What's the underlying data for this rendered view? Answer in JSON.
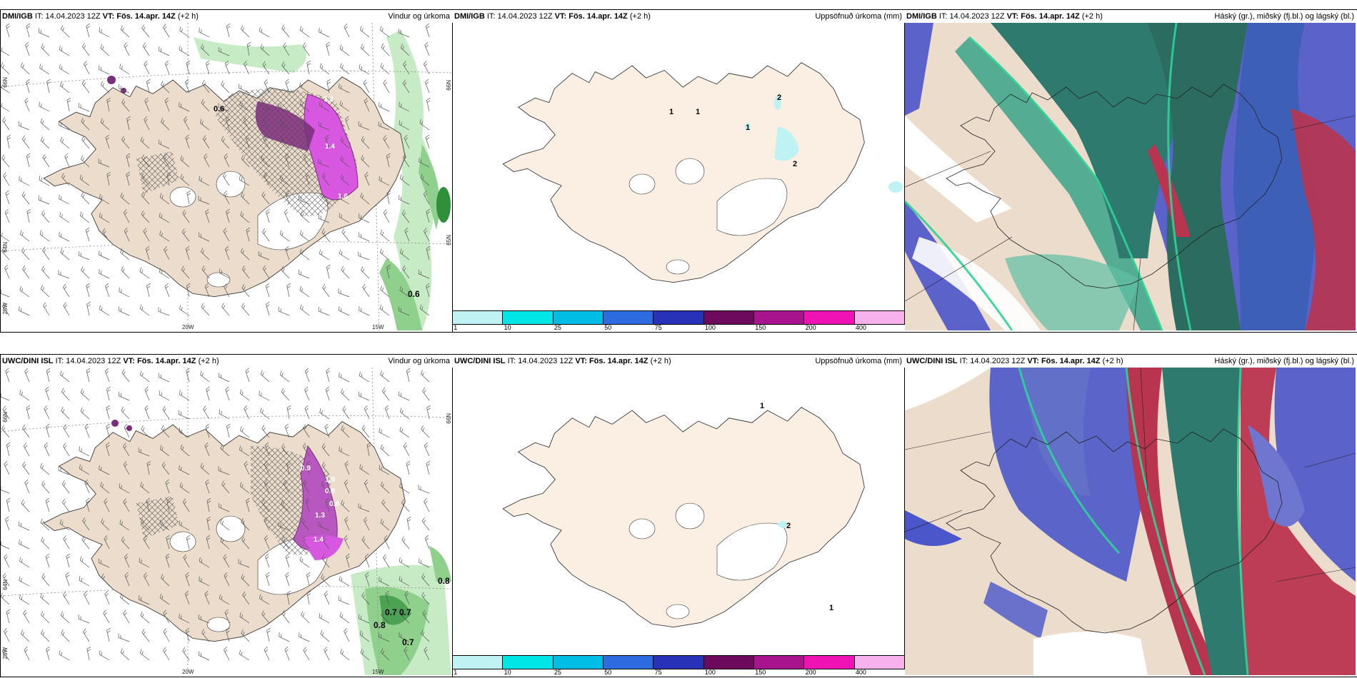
{
  "colors": {
    "land": "#ebdccb",
    "land_precip": "#fbefe3",
    "ocean": "#ffffff",
    "precip_light": "#c7ebc4",
    "precip_mid": "#8fd18c",
    "precip_dark": "#2f8f3a",
    "magenta": "#d857e0",
    "purple": "#7a2d7a",
    "high_cloud": "#2e7a6e",
    "mid_cloud": "#4a56c9",
    "low_cloud": "#b9344e",
    "cloud_edge": "#2fd39a"
  },
  "panels": [
    {
      "id": "p1",
      "model": "DMI/IGB",
      "it_label": "IT:",
      "it": "14.04.2023 12Z",
      "vt_label": "VT:",
      "vt": "Fös. 14.apr. 14Z",
      "lead": "(+2 h)",
      "product": "Vindur og úrkoma"
    },
    {
      "id": "p2",
      "model": "DMI/IGB",
      "it_label": "IT:",
      "it": "14.04.2023 12Z",
      "vt_label": "VT:",
      "vt": "Fös. 14.apr. 14Z",
      "lead": "(+2 h)",
      "product": "Uppsöfnuð úrkoma (mm)"
    },
    {
      "id": "p3",
      "model": "DMI/IGB",
      "it_label": "IT:",
      "it": "14.04.2023 12Z",
      "vt_label": "VT:",
      "vt": "Fös. 14.apr. 14Z",
      "lead": "(+2 h)",
      "product": "Háský (gr.), miðský (fj.bl.) og lágský (bl.)"
    },
    {
      "id": "p4",
      "model": "UWC/DINI ISL",
      "it_label": "IT:",
      "it": "14.04.2023 12Z",
      "vt_label": "VT:",
      "vt": "Fös. 14.apr. 14Z",
      "lead": "(+2 h)",
      "product": "Vindur og úrkoma"
    },
    {
      "id": "p5",
      "model": "UWC/DINI ISL",
      "it_label": "IT:",
      "it": "14.04.2023 12Z",
      "vt_label": "VT:",
      "vt": "Fös. 14.apr. 14Z",
      "lead": "(+2 h)",
      "product": "Uppsöfnuð úrkoma (mm)"
    },
    {
      "id": "p6",
      "model": "UWC/DINI ISL",
      "it_label": "IT:",
      "it": "14.04.2023 12Z",
      "vt_label": "VT:",
      "vt": "Fös. 14.apr. 14Z",
      "lead": "(+2 h)",
      "product": "Háský (gr.), miðský (fj.bl.) og lágský (bl.)"
    }
  ],
  "axis_labels": {
    "lat66": "66N",
    "lat64": "64N",
    "lat65": "65N",
    "lon20": "20W",
    "lon15": "15W",
    "lon25": "25W"
  },
  "precip_legend": {
    "colors": [
      "#bff3f3",
      "#00e6e6",
      "#00bde6",
      "#2f6be0",
      "#2732b8",
      "#6e0a5e",
      "#a8148e",
      "#f012b4",
      "#f7b2ee"
    ],
    "ticks": [
      "1",
      "10",
      "25",
      "50",
      "75",
      "100",
      "150",
      "200",
      "400"
    ]
  },
  "values": {
    "p1": [
      "0.6",
      "1.4",
      "1.6",
      "1.2",
      "0.6"
    ],
    "p2": [
      "2",
      "2",
      "1",
      "1",
      "1"
    ],
    "p4": [
      "0.8",
      "0.7",
      "0.7",
      "0.8",
      "0.7",
      "1.4",
      "1.0",
      "0.8",
      "1.3",
      "0.9",
      "0.8"
    ],
    "p5": [
      "1",
      "2",
      "1"
    ]
  }
}
